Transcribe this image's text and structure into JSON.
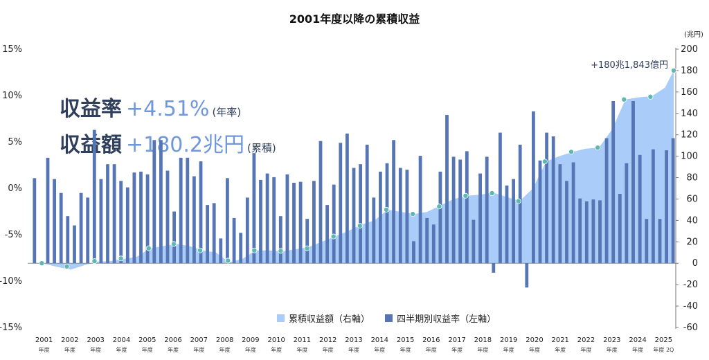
{
  "chart_data": {
    "type": "bar+area",
    "title": "2001年度以降の累積収益",
    "right_unit": "(兆円)",
    "annotation": "+180兆1,843億円",
    "callouts": [
      {
        "label": "収益率",
        "value": "+4.51%",
        "note": "(年率)"
      },
      {
        "label": "収益額",
        "value": "+180.2兆円",
        "note": "(累積)"
      }
    ],
    "legend": [
      {
        "name": "累積収益額（右軸）",
        "color": "#a9ccf8"
      },
      {
        "name": "四半期別収益率（左軸）",
        "color": "#5575b4"
      }
    ],
    "legend_position": "bottom-center",
    "left_axis": {
      "ticks": [
        "15%",
        "10%",
        "5%",
        "0%",
        "-5%",
        "-10%",
        "-15%"
      ],
      "min": -15,
      "max": 15
    },
    "right_axis": {
      "ticks": [
        "200",
        "180",
        "160",
        "140",
        "120",
        "100",
        "80",
        "60",
        "40",
        "20",
        "0",
        "-20",
        "-40",
        "-60"
      ],
      "min": -60,
      "max": 200
    },
    "x_labels": [
      "2001",
      "2002",
      "2003",
      "2004",
      "2005",
      "2006",
      "2007",
      "2008",
      "2009",
      "2010",
      "2011",
      "2012",
      "2013",
      "2014",
      "2015",
      "2016",
      "2017",
      "2018",
      "2019",
      "2020",
      "2021",
      "2022",
      "2023",
      "2024",
      "2025"
    ],
    "x_sub_label": "年度",
    "x_last_sub_label": "2Q",
    "quarterly_return_pct": [
      1.1,
      -8.0,
      3.3,
      1.0,
      -0.5,
      -3.0,
      -4.0,
      -0.5,
      -1.0,
      6.3,
      1.0,
      2.6,
      2.6,
      0.8,
      0.1,
      1.7,
      1.8,
      1.5,
      5.2,
      5.2,
      1.9,
      -2.5,
      3.3,
      3.3,
      1.3,
      2.9,
      -1.8,
      -1.6,
      -5.4,
      1.1,
      -3.2,
      -4.8,
      -1.0,
      3.8,
      0.9,
      1.6,
      1.2,
      -3.0,
      1.5,
      0.6,
      0.7,
      -3.3,
      0.8,
      5.1,
      -1.8,
      0.4,
      4.9,
      5.9,
      2.2,
      2.6,
      4.7,
      -1.0,
      1.8,
      2.7,
      5.2,
      2.2,
      2.0,
      -5.7,
      3.5,
      -3.2,
      -3.9,
      1.8,
      7.9,
      3.4,
      3.1,
      4.0,
      -3.4,
      1.6,
      3.4,
      -9.1,
      6.0,
      0.3,
      1.0,
      4.7,
      -10.7,
      8.3,
      3.0,
      6.0,
      5.6,
      2.6,
      0.8,
      2.8,
      -1.1,
      -1.4,
      -1.2,
      -1.3,
      5.4,
      9.4,
      -0.6,
      2.7,
      9.4,
      3.6,
      -3.3,
      4.2,
      -3.3,
      4.1,
      5.4
    ],
    "cumulative_trillion_yen": {
      "x": [
        2001.0,
        2001.5,
        2002.0,
        2002.5,
        2003.0,
        2003.5,
        2004.0,
        2004.5,
        2005.0,
        2005.5,
        2006.0,
        2006.5,
        2007.0,
        2007.5,
        2008.0,
        2008.5,
        2009.0,
        2009.5,
        2010.0,
        2010.5,
        2011.0,
        2011.5,
        2012.0,
        2012.5,
        2013.0,
        2013.5,
        2014.0,
        2014.5,
        2015.0,
        2015.5,
        2016.0,
        2016.5,
        2017.0,
        2017.5,
        2018.0,
        2018.5,
        2019.0,
        2019.5,
        2020.0,
        2020.5,
        2021.0,
        2021.5,
        2022.0,
        2022.5,
        2023.0,
        2023.5,
        2024.0,
        2024.5,
        2025.0,
        2025.33
      ],
      "y": [
        0,
        -0.5,
        -3.5,
        -6,
        -2,
        1.5,
        2,
        4,
        6,
        14,
        16,
        18,
        16,
        12,
        10,
        1,
        4,
        12,
        12,
        11,
        13,
        15,
        20,
        25,
        30,
        36,
        40,
        50,
        48,
        46,
        48,
        54,
        60,
        63,
        64,
        66,
        62,
        58,
        70,
        95,
        100,
        104,
        107,
        108,
        125,
        153,
        155,
        156,
        164,
        180
      ],
      "markers_x": [
        2001.4,
        2002.35,
        2003.4,
        2004.4,
        2005.45,
        2006.4,
        2007.4,
        2008.45,
        2009.45,
        2010.45,
        2011.45,
        2012.45,
        2013.45,
        2014.45,
        2015.45,
        2016.45,
        2017.45,
        2018.45,
        2019.45,
        2020.45,
        2021.45,
        2022.45,
        2023.45,
        2024.45,
        2025.33
      ],
      "markers_y": [
        0,
        -3,
        2,
        4.5,
        14,
        18,
        12,
        2.5,
        12,
        11.5,
        14,
        25,
        35,
        50,
        46,
        53,
        63,
        65.5,
        58,
        95,
        104,
        108,
        153,
        155.5,
        180
      ]
    }
  }
}
